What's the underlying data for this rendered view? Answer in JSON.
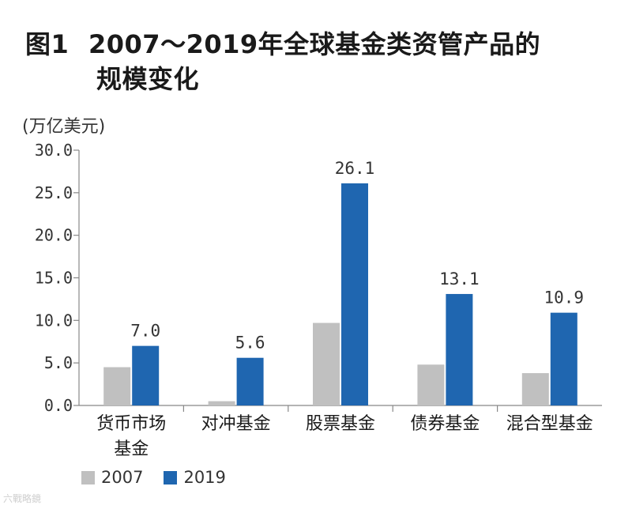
{
  "figure": {
    "number": "图1",
    "title_line1": "2007～2019年全球基金类资管产品的",
    "title_line2": "规模变化",
    "unit": "(万亿美元)",
    "watermark": "六戰略鏡"
  },
  "colors": {
    "series_2007": "#c0c0c0",
    "series_2019": "#1f66b0",
    "axis": "#888888"
  },
  "legend": [
    {
      "label": "2007",
      "series": "2007"
    },
    {
      "label": "2019",
      "series": "2019"
    }
  ],
  "chart_data": {
    "type": "bar",
    "title": "2007～2019年全球基金类资管产品的规模变化",
    "ylabel": "(万亿美元)",
    "xlabel": "",
    "ylim": [
      0,
      30
    ],
    "yticks": [
      "0.0",
      "5.0",
      "10.0",
      "15.0",
      "20.0",
      "25.0",
      "30.0"
    ],
    "categories": [
      {
        "lines": [
          "货币市场",
          "基金"
        ]
      },
      {
        "lines": [
          "对冲基金"
        ]
      },
      {
        "lines": [
          "股票基金"
        ]
      },
      {
        "lines": [
          "债券基金"
        ]
      },
      {
        "lines": [
          "混合型基金"
        ]
      }
    ],
    "series": [
      {
        "name": "2007",
        "values": [
          4.5,
          0.5,
          9.7,
          4.8,
          3.8
        ],
        "labels": [
          null,
          null,
          null,
          null,
          null
        ]
      },
      {
        "name": "2019",
        "values": [
          7.0,
          5.6,
          26.1,
          13.1,
          10.9
        ],
        "labels": [
          "7.0",
          "5.6",
          "26.1",
          "13.1",
          "10.9"
        ]
      }
    ],
    "legend_position": "bottom-left"
  }
}
